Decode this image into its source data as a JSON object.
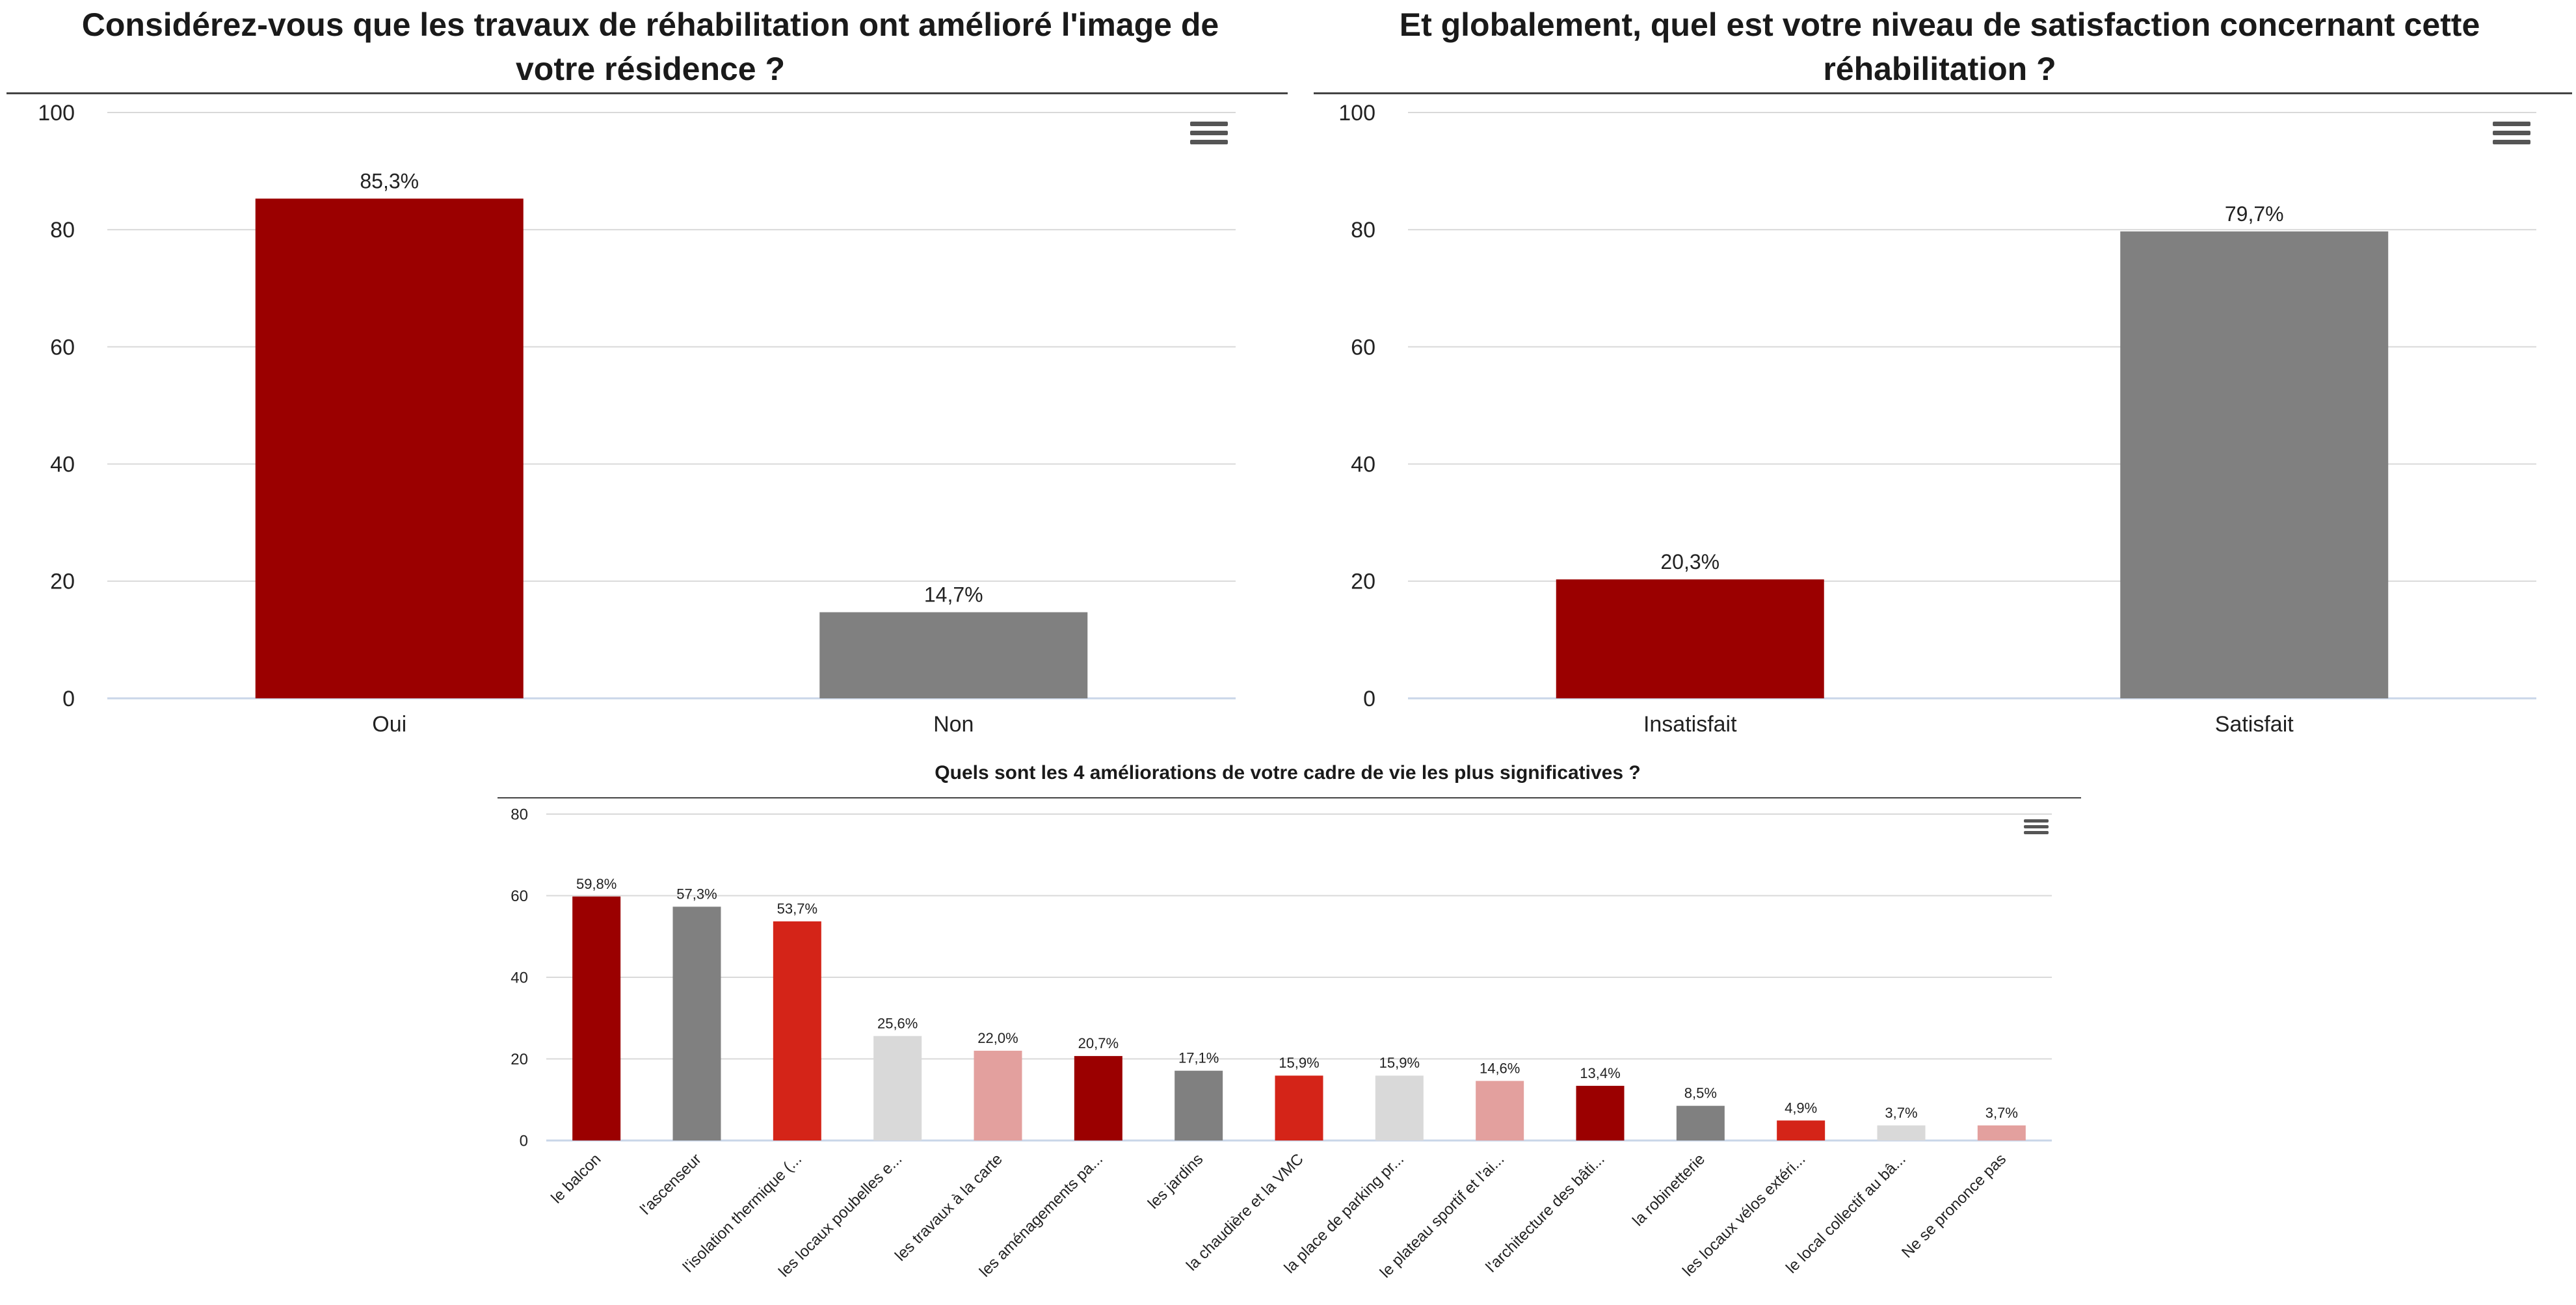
{
  "chart_data": [
    {
      "type": "bar",
      "title": "Considérez-vous que les travaux de réhabilitation ont amélioré l'image de votre résidence ?",
      "title_lines": [
        "Considérez-vous que les travaux de réhabilitation ont amélioré l'image de",
        "votre résidence ?"
      ],
      "categories": [
        "Oui",
        "Non"
      ],
      "values": [
        85.3,
        14.7
      ],
      "data_labels": [
        "85,3%",
        "14,7%"
      ],
      "colors": [
        "#9b0000",
        "#808080"
      ],
      "ylim": [
        0,
        100
      ],
      "yticks": [
        0,
        20,
        40,
        60,
        80,
        100
      ],
      "grid": true,
      "menu_icon": "hamburger-menu-icon"
    },
    {
      "type": "bar",
      "title": "Et globalement, quel est votre niveau de satisfaction concernant cette réhabilitation ?",
      "title_lines": [
        "Et globalement, quel est votre niveau de satisfaction concernant cette",
        "réhabilitation ?"
      ],
      "categories": [
        "Insatisfait",
        "Satisfait"
      ],
      "values": [
        20.3,
        79.7
      ],
      "data_labels": [
        "20,3%",
        "79,7%"
      ],
      "colors": [
        "#9b0000",
        "#808080"
      ],
      "ylim": [
        0,
        100
      ],
      "yticks": [
        0,
        20,
        40,
        60,
        80,
        100
      ],
      "grid": true,
      "menu_icon": "hamburger-menu-icon"
    },
    {
      "type": "bar",
      "title": "Quels sont les 4 améliorations de votre cadre de vie les plus significatives ?",
      "title_lines": [
        "Quels sont les 4 améliorations de votre cadre de vie les plus significatives ?"
      ],
      "categories": [
        "le balcon",
        "l'ascenseur",
        "l'isolation thermique (...",
        "les locaux poubelles e...",
        "les travaux à la carte",
        "les aménagements pa...",
        "les jardins",
        "la chaudière et la VMC",
        "la place de parking pr...",
        "le plateau sportif et l'ai...",
        "l'architecture des bâti...",
        "la robinetterie",
        "les locaux vélos extéri...",
        "le local collectif au bâ...",
        "Ne se prononce pas"
      ],
      "values": [
        59.8,
        57.3,
        53.7,
        25.6,
        22.0,
        20.7,
        17.1,
        15.9,
        15.9,
        14.6,
        13.4,
        8.5,
        4.9,
        3.7,
        3.7
      ],
      "data_labels": [
        "59,8%",
        "57,3%",
        "53,7%",
        "25,6%",
        "22,0%",
        "20,7%",
        "17,1%",
        "15,9%",
        "15,9%",
        "14,6%",
        "13,4%",
        "8,5%",
        "4,9%",
        "3,7%",
        "3,7%"
      ],
      "colors": [
        "#9b0000",
        "#808080",
        "#d42418",
        "#d9d9d9",
        "#e3a09e",
        "#9b0000",
        "#808080",
        "#d42418",
        "#d9d9d9",
        "#e3a09e",
        "#9b0000",
        "#808080",
        "#d42418",
        "#d9d9d9",
        "#e3a09e"
      ],
      "ylim": [
        0,
        80
      ],
      "yticks": [
        0,
        20,
        40,
        60,
        80
      ],
      "grid": true,
      "menu_icon": "hamburger-menu-icon"
    }
  ]
}
